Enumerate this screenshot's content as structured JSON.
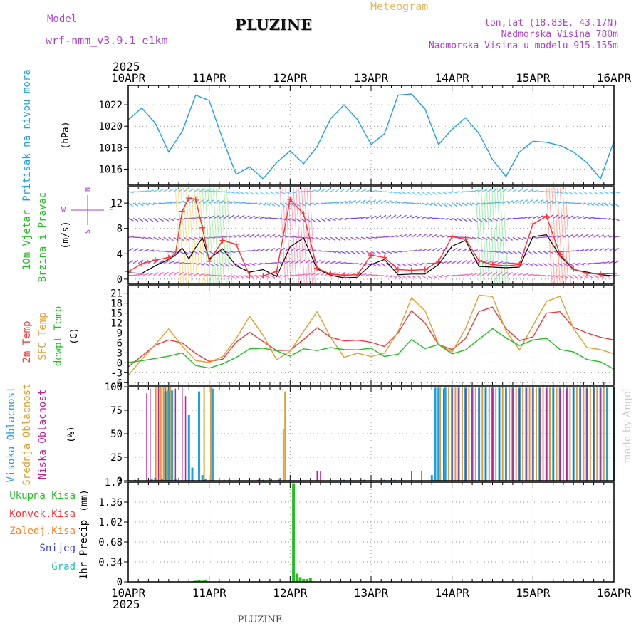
{
  "header": {
    "model_label": "Model",
    "model_value": "wrf-nmm_v3.9.1  e1km",
    "title": "PLUZINE",
    "meteogram": "Meteogram",
    "lonlat": "lon,lat (18.83E, 43.17N)",
    "elevation": "Nadmorska Visina 780m",
    "model_elevation": "Nadmorska Visina u modelu 915.155m"
  },
  "footer": {
    "station": "PLUZINE",
    "credit": "made by Angel"
  },
  "time_axis": {
    "year": "2025",
    "labels": [
      "10APR",
      "11APR",
      "12APR",
      "13APR",
      "14APR",
      "15APR",
      "16APR"
    ]
  },
  "colors": {
    "pressure": "#1ea0e6",
    "wind_speed": "#000000",
    "gust": "#ff3030",
    "temp_2m": "#e83c3c",
    "temp_sfc": "#e0a030",
    "dewpoint": "#22c022",
    "cloud_high": "#1ea0e6",
    "cloud_mid": "#e0a030",
    "cloud_low": "#c0209a",
    "precip_total": "#22c022",
    "precip_conv": "#ff3030",
    "precip_frz": "#ff8020",
    "snow": "#4040e0",
    "graupel": "#20c0c0",
    "compass": "#b040d0"
  },
  "chart_data": [
    {
      "type": "line",
      "ylabel_main": "Pritisak na nivou mora",
      "ylabel_unit": "(hPa)",
      "ylim": [
        1014.5,
        1023.8
      ],
      "yticks": [
        "1016",
        "1018",
        "1020",
        "1022"
      ],
      "xlim": [
        0,
        144
      ],
      "series": [
        {
          "x": [
            0,
            4,
            8,
            12,
            16,
            20,
            24,
            28,
            32,
            36,
            40,
            44,
            48,
            52,
            56,
            60,
            64,
            68,
            72,
            76,
            80,
            84,
            88,
            92,
            96,
            100,
            104,
            108,
            112,
            116,
            120,
            124,
            128,
            132,
            136,
            140,
            144
          ],
          "values": [
            1020.6,
            1021.7,
            1020.3,
            1017.6,
            1019.5,
            1022.9,
            1022.4,
            1018.8,
            1015.5,
            1016.2,
            1015.1,
            1016.6,
            1017.7,
            1016.5,
            1018.1,
            1020.7,
            1022.0,
            1020.6,
            1018.3,
            1019.3,
            1022.9,
            1023.0,
            1021.6,
            1018.3,
            1019.7,
            1020.8,
            1019.3,
            1016.9,
            1015.3,
            1017.6,
            1018.6,
            1018.5,
            1018.2,
            1017.6,
            1016.6,
            1015.1,
            1018.6
          ]
        }
      ]
    },
    {
      "type": "line",
      "ylabel_main": "10m Vjetar",
      "ylabel_sub": "Brzina i Pravac",
      "ylabel_unit": "(m/s)",
      "compass": {
        "n": "N",
        "e": "E",
        "s": "S",
        "w": "W"
      },
      "ylim": [
        -0.8,
        14.6
      ],
      "yticks": [
        "0",
        "4",
        "8",
        "12"
      ],
      "xlim": [
        0,
        144
      ],
      "series": [
        {
          "x": [
            0,
            4,
            8,
            12,
            14,
            16,
            18,
            20,
            22,
            24,
            28,
            32,
            36,
            40,
            44,
            48,
            52,
            56,
            60,
            64,
            68,
            72,
            76,
            80,
            84,
            88,
            92,
            96,
            100,
            104,
            108,
            112,
            116,
            120,
            124,
            128,
            132,
            136,
            140,
            144
          ],
          "values": [
            1.0,
            0.9,
            2.1,
            3.1,
            3.8,
            4.9,
            3.2,
            5.0,
            6.5,
            3.2,
            4.8,
            2.1,
            1.1,
            1.5,
            0.4,
            5.1,
            6.5,
            1.6,
            0.6,
            0.2,
            0.3,
            2.3,
            3.1,
            0.7,
            0.8,
            0.8,
            2.3,
            5.2,
            6.1,
            2.0,
            1.9,
            1.8,
            1.9,
            6.7,
            7.0,
            3.7,
            1.5,
            1.1,
            0.7,
            0.5
          ]
        },
        {
          "x": [
            0,
            4,
            8,
            12,
            14,
            16,
            18,
            20,
            22,
            24,
            28,
            32,
            36,
            40,
            44,
            48,
            52,
            56,
            60,
            64,
            68,
            72,
            76,
            80,
            84,
            88,
            92,
            96,
            100,
            104,
            108,
            112,
            116,
            120,
            124,
            128,
            132,
            136,
            140,
            144
          ],
          "values": [
            1.2,
            2.4,
            3.0,
            3.4,
            4.0,
            10.7,
            12.8,
            12.6,
            8.1,
            2.8,
            6.1,
            5.5,
            0.5,
            0.5,
            1.2,
            12.6,
            10.3,
            1.7,
            0.8,
            0.6,
            0.7,
            3.8,
            3.4,
            1.5,
            1.4,
            1.5,
            2.8,
            6.7,
            6.3,
            2.9,
            2.3,
            2.1,
            2.3,
            8.7,
            9.9,
            3.9,
            1.6,
            0.9,
            0.8,
            0.9
          ]
        }
      ]
    },
    {
      "type": "line",
      "ylabel_main": "2m Temp",
      "ylabel_sub": "SFC Temp",
      "ylabel_sub2": "dewpt Temp",
      "ylabel_unit": "(C)",
      "ylim": [
        -6.8,
        23.3
      ],
      "yticks": [
        "-6",
        "-3",
        "0",
        "3",
        "6",
        "9",
        "12",
        "15",
        "18",
        "21"
      ],
      "xlim": [
        0,
        144
      ],
      "series": [
        {
          "x": [
            0,
            4,
            8,
            12,
            16,
            20,
            24,
            28,
            32,
            36,
            40,
            44,
            48,
            52,
            56,
            60,
            64,
            68,
            72,
            76,
            80,
            84,
            88,
            92,
            96,
            100,
            104,
            108,
            112,
            116,
            120,
            124,
            128,
            132,
            136,
            140,
            144
          ],
          "values": [
            -1.2,
            2.0,
            5.3,
            6.9,
            6.0,
            2.8,
            0.4,
            1.1,
            6.2,
            9.2,
            6.4,
            3.7,
            3.8,
            7.0,
            10.6,
            7.7,
            6.6,
            6.8,
            6.2,
            4.9,
            9.0,
            15.7,
            12.0,
            5.5,
            4.0,
            7.3,
            15.5,
            16.8,
            10.3,
            6.7,
            7.8,
            15.0,
            15.4,
            10.7,
            9.0,
            7.7,
            6.9
          ]
        },
        {
          "x": [
            0,
            4,
            8,
            12,
            16,
            20,
            24,
            28,
            32,
            36,
            40,
            44,
            48,
            52,
            56,
            60,
            64,
            68,
            72,
            76,
            80,
            84,
            88,
            92,
            96,
            100,
            104,
            108,
            112,
            116,
            120,
            124,
            128,
            132,
            136,
            140,
            144
          ],
          "values": [
            -3.8,
            1.0,
            5.5,
            10.2,
            5.1,
            0.7,
            0.1,
            1.9,
            7.3,
            14.0,
            8.3,
            0.9,
            3.5,
            9.5,
            15.4,
            7.7,
            1.7,
            2.9,
            1.9,
            2.9,
            9.4,
            19.6,
            15.7,
            5.6,
            3.2,
            10.3,
            20.4,
            20.0,
            9.6,
            3.9,
            11.2,
            18.5,
            20.1,
            10.4,
            4.6,
            4.0,
            2.7
          ]
        },
        {
          "x": [
            0,
            4,
            8,
            12,
            16,
            20,
            24,
            28,
            32,
            36,
            40,
            44,
            48,
            52,
            56,
            60,
            64,
            68,
            72,
            76,
            80,
            84,
            88,
            92,
            96,
            100,
            104,
            108,
            112,
            116,
            120,
            124,
            128,
            132,
            136,
            140,
            144
          ],
          "values": [
            0.1,
            0.6,
            1.3,
            2.0,
            3.0,
            -0.8,
            -1.6,
            -0.3,
            1.6,
            4.2,
            4.4,
            3.6,
            2.0,
            4.2,
            3.7,
            4.6,
            4.0,
            3.9,
            4.4,
            1.9,
            2.6,
            7.0,
            4.3,
            5.5,
            2.7,
            3.9,
            7.1,
            10.3,
            7.5,
            5.2,
            6.9,
            7.4,
            4.0,
            3.3,
            1.0,
            0.3,
            -1.9
          ]
        }
      ]
    },
    {
      "type": "bar",
      "ylabel_main": "Visoka Oblacnost",
      "ylabel_sub": "Srednja Oblacnost",
      "ylabel_sub2": "Niska Oblacnost",
      "ylabel_unit": "(%)",
      "ylim": [
        0,
        100
      ],
      "yticks": [
        "0",
        "25",
        "50",
        "75",
        "100"
      ],
      "xlim": [
        0,
        144
      ],
      "series": [
        {
          "x": [
            2,
            7,
            8,
            10,
            11,
            12,
            13,
            14,
            18,
            19,
            21,
            22,
            23,
            25,
            30,
            40,
            45,
            48,
            63,
            64,
            70,
            76,
            79,
            90,
            91,
            92,
            94,
            96,
            98,
            100,
            102,
            104,
            106,
            108,
            110,
            112,
            114,
            116,
            118,
            120,
            122,
            124,
            126,
            128,
            130,
            132,
            134,
            136,
            138,
            140,
            142,
            144
          ],
          "values": [
            1,
            2,
            3,
            2,
            95,
            97,
            96,
            2,
            70,
            14,
            95,
            6,
            2,
            98,
            1,
            1,
            1,
            1,
            1,
            1,
            1,
            1,
            1,
            6,
            99,
            99,
            99,
            99,
            99,
            99,
            99,
            99,
            99,
            99,
            99,
            99,
            99,
            99,
            99,
            99,
            99,
            99,
            99,
            99,
            99,
            99,
            99,
            99,
            99,
            99,
            99,
            99
          ]
        },
        {
          "x": [
            8.5,
            9.5,
            10.5,
            11.5,
            12.5,
            22.5,
            24.5,
            46,
            46.5,
            92.5,
            95,
            97,
            99,
            101,
            103,
            105,
            107,
            109,
            111,
            113,
            115,
            117,
            119,
            121,
            123,
            125,
            127,
            129,
            131,
            133,
            135,
            137,
            139,
            141
          ],
          "values": [
            100,
            100,
            100,
            100,
            100,
            100,
            100,
            55,
            95,
            99,
            99,
            99,
            99,
            99,
            99,
            99,
            99,
            99,
            99,
            99,
            99,
            99,
            99,
            99,
            99,
            99,
            99,
            99,
            99,
            99,
            99,
            99,
            99,
            99
          ]
        },
        {
          "x": [
            5.5,
            6.5,
            8,
            9,
            10,
            11,
            14,
            16,
            17,
            28.5,
            38.5,
            42.5,
            44.5,
            56,
            57,
            84,
            87,
            93.5,
            96,
            98,
            100,
            102,
            104,
            106,
            108,
            110,
            112,
            114,
            116,
            118,
            120,
            122,
            124,
            126,
            128,
            130,
            132,
            134,
            136,
            138,
            140
          ],
          "values": [
            93,
            98,
            99,
            99,
            99,
            99,
            98,
            99,
            90,
            1,
            1,
            2,
            2,
            10,
            10,
            10,
            10,
            98,
            98,
            98,
            98,
            98,
            98,
            98,
            98,
            98,
            98,
            98,
            98,
            98,
            98,
            98,
            98,
            98,
            98,
            98,
            98,
            98,
            98,
            98,
            98
          ]
        }
      ]
    },
    {
      "type": "bar",
      "legend": [
        "Ukupna Kisa",
        "Konvek.Kisa",
        "Zaledj.Kisa",
        "Snijeg",
        "Grad"
      ],
      "ylabel_main": "1hr Precip",
      "ylabel_unit": "(mm)",
      "ylim": [
        0,
        1.7
      ],
      "yticks": [
        "0",
        "0.34",
        "0.68",
        "1.02",
        "1.36",
        "1.7"
      ],
      "xlim": [
        0,
        144
      ],
      "series": [
        {
          "x": [
            19,
            20,
            21,
            22,
            23,
            49,
            50,
            51,
            52,
            53,
            54
          ],
          "values": [
            0.01,
            0.02,
            0.03,
            0.02,
            0.03,
            1.68,
            0.14,
            0.08,
            0.05,
            0.05,
            0.07
          ]
        }
      ]
    }
  ]
}
